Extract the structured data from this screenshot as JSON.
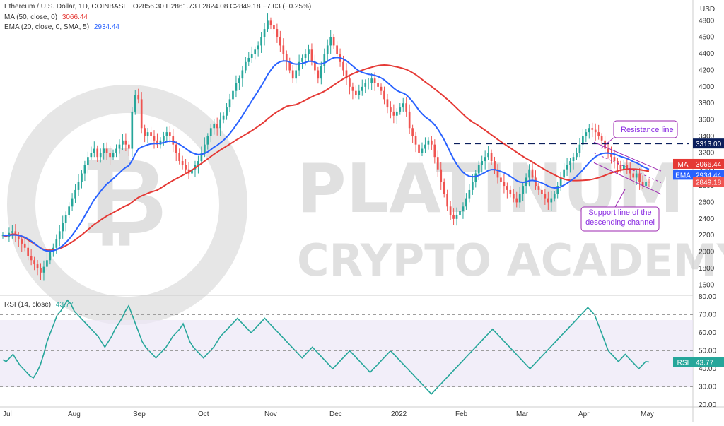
{
  "header": {
    "symbol_line": "Ethereum / U.S. Dollar, 1D, COINBASE",
    "ohlc": "O2856.30  H2861.73  L2824.08  C2849.18  −7.03 (−0.25%)",
    "ma_label": "MA (50, close, 0)",
    "ma_value": "3066.44",
    "ema_label": "EMA (20, close, 0, SMA, 5)",
    "ema_value": "2934.44",
    "rsi_label": "RSI (14, close)",
    "rsi_value": "43.77"
  },
  "watermark": {
    "line1": "PLATINUM",
    "line2": "CRYPTO ACADEMY"
  },
  "colors": {
    "up": "#26a69a",
    "down": "#ef5350",
    "ma": "#e53935",
    "ema": "#2962ff",
    "rsi": "#26a69a",
    "resistance": "#0b1f5c",
    "annotation": "#9c27b0",
    "price_tag": "#ef5350"
  },
  "chart_data": [
    {
      "type": "candlestick",
      "title": "Ethereum / U.S. Dollar, 1D, COINBASE",
      "ylabel": "USD",
      "ylim": [
        1500,
        5000
      ],
      "y_ticks": [
        1600,
        1800,
        2000,
        2200,
        2400,
        2600,
        2800,
        3000,
        3200,
        3400,
        3600,
        3800,
        4000,
        4200,
        4400,
        4600,
        4800,
        5000
      ],
      "x_ticks": [
        "Jul",
        "Aug",
        "Sep",
        "Oct",
        "Nov",
        "Dec",
        "2022",
        "Feb",
        "Mar",
        "Apr",
        "May"
      ],
      "grid": false,
      "close_series": [
        2200,
        2180,
        2230,
        2250,
        2200,
        2150,
        2100,
        2050,
        1950,
        1900,
        1850,
        1800,
        1750,
        1820,
        1900,
        2000,
        2050,
        2150,
        2250,
        2350,
        2450,
        2550,
        2650,
        2750,
        2850,
        2950,
        3050,
        3150,
        3200,
        3250,
        3150,
        3200,
        3250,
        3200,
        3150,
        3200,
        3250,
        3300,
        3350,
        3300,
        3250,
        3700,
        3900,
        3850,
        3500,
        3400,
        3450,
        3400,
        3350,
        3300,
        3350,
        3400,
        3450,
        3400,
        3300,
        3200,
        3100,
        3050,
        3000,
        2950,
        3000,
        3050,
        3100,
        3200,
        3300,
        3400,
        3500,
        3550,
        3500,
        3600,
        3650,
        3750,
        3850,
        3950,
        4050,
        4100,
        4200,
        4300,
        4350,
        4400,
        4450,
        4500,
        4600,
        4700,
        4800,
        4750,
        4700,
        4600,
        4500,
        4400,
        4300,
        4200,
        4100,
        4200,
        4300,
        4350,
        4400,
        4450,
        4300,
        4200,
        4100,
        4250,
        4400,
        4500,
        4600,
        4500,
        4400,
        4300,
        4200,
        4100,
        4000,
        3950,
        3900,
        3950,
        4000,
        4050,
        4050,
        4100,
        4050,
        4000,
        3950,
        3850,
        3750,
        3700,
        3650,
        3700,
        3750,
        3800,
        3700,
        3500,
        3400,
        3300,
        3200,
        3250,
        3300,
        3350,
        3300,
        3150,
        3000,
        2850,
        2700,
        2550,
        2450,
        2400,
        2450,
        2500,
        2550,
        2650,
        2750,
        2850,
        2950,
        3050,
        3100,
        3150,
        3200,
        3100,
        3000,
        2900,
        2850,
        2800,
        2750,
        2700,
        2650,
        2600,
        2700,
        2800,
        2900,
        3000,
        2900,
        2800,
        2750,
        2700,
        2650,
        2600,
        2650,
        2700,
        2800,
        2900,
        3000,
        3050,
        3100,
        3150,
        3200,
        3300,
        3400,
        3450,
        3500,
        3480,
        3450,
        3400,
        3350,
        3250,
        3200,
        3150,
        3100,
        3050,
        3000,
        3050,
        3000,
        2950,
        2900,
        2950,
        2850,
        2800,
        2850,
        2849.18
      ],
      "annotations": [
        "Resistance line",
        "Support line of the descending channel"
      ],
      "price_tags": [
        {
          "label": "",
          "value": "3313.00"
        },
        {
          "label": "MA",
          "value": "3066.44"
        },
        {
          "label": "EMA",
          "value": "2934.44"
        },
        {
          "label": "",
          "value": "2849.18"
        }
      ],
      "series": [
        {
          "name": "MA (50, close, 0)",
          "last": 3066.44
        },
        {
          "name": "EMA (20, close, 0, SMA, 5)",
          "last": 2934.44
        }
      ],
      "resistance_level": 3313.0
    },
    {
      "type": "line",
      "title": "RSI (14, close)",
      "ylim": [
        20,
        80
      ],
      "y_ticks": [
        20,
        30,
        40,
        50,
        60,
        70,
        80
      ],
      "band": [
        30,
        70
      ],
      "series": [
        {
          "name": "RSI (14, close)",
          "values": [
            45,
            44,
            46,
            48,
            45,
            42,
            40,
            38,
            36,
            35,
            38,
            42,
            48,
            55,
            60,
            65,
            70,
            72,
            75,
            78,
            76,
            72,
            70,
            68,
            66,
            64,
            62,
            60,
            58,
            55,
            52,
            55,
            58,
            62,
            65,
            68,
            72,
            75,
            70,
            65,
            60,
            55,
            52,
            50,
            48,
            46,
            48,
            50,
            52,
            55,
            58,
            60,
            62,
            65,
            60,
            55,
            52,
            50,
            48,
            46,
            48,
            50,
            52,
            55,
            58,
            60,
            62,
            64,
            66,
            68,
            66,
            64,
            62,
            60,
            62,
            64,
            66,
            68,
            66,
            64,
            62,
            60,
            58,
            56,
            54,
            52,
            50,
            48,
            46,
            48,
            50,
            52,
            50,
            48,
            46,
            44,
            42,
            40,
            42,
            44,
            46,
            48,
            50,
            48,
            46,
            44,
            42,
            40,
            38,
            40,
            42,
            44,
            46,
            48,
            50,
            48,
            46,
            44,
            42,
            40,
            38,
            36,
            34,
            32,
            30,
            28,
            26,
            28,
            30,
            32,
            34,
            36,
            38,
            40,
            42,
            44,
            46,
            48,
            50,
            52,
            54,
            56,
            58,
            60,
            62,
            60,
            58,
            56,
            54,
            52,
            50,
            48,
            46,
            44,
            42,
            40,
            42,
            44,
            46,
            48,
            50,
            52,
            54,
            56,
            58,
            60,
            62,
            64,
            66,
            68,
            70,
            72,
            74,
            72,
            70,
            65,
            60,
            55,
            50,
            48,
            46,
            44,
            46,
            48,
            46,
            44,
            42,
            40,
            42,
            44,
            43.77
          ],
          "last": 43.77
        }
      ]
    }
  ]
}
